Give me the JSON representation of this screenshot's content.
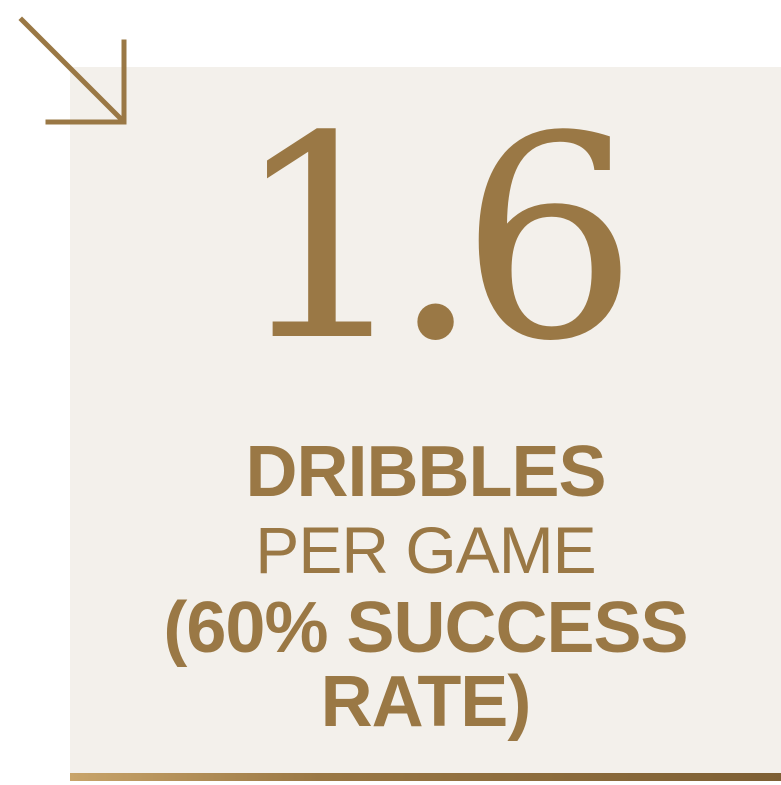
{
  "stat": {
    "value": "1.6",
    "line1": "DRIBBLES",
    "line2": "PER GAME",
    "line3": "(60% SUCCESS",
    "line4": "RATE)"
  },
  "icons": {
    "arrow": "arrow-down-right-icon"
  },
  "colors": {
    "accent": "#9a7845",
    "panel": "#f3f0eb",
    "background": "#ffffff"
  }
}
